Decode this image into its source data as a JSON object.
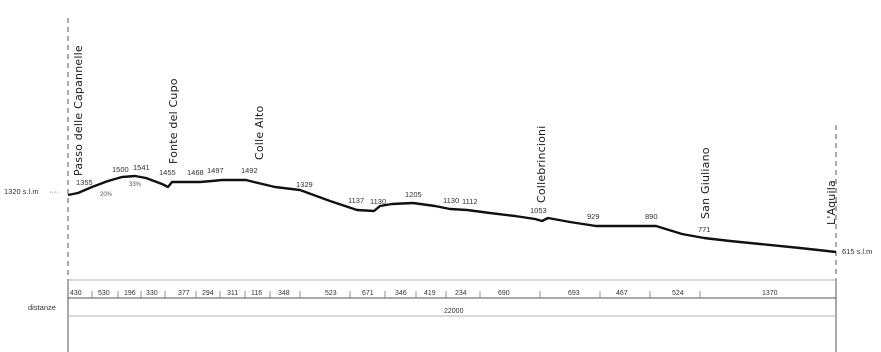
{
  "places": [
    {
      "name": "Passo delle Capannelle"
    },
    {
      "name": "Fonte del Cupo"
    },
    {
      "name": "Colle Alto"
    },
    {
      "name": "Collebrincioni"
    },
    {
      "name": "San Giuliano"
    },
    {
      "name": "L'Aquila"
    }
  ],
  "start_altitude": "1320 s.l.m",
  "end_altitude": "615 s.l.m",
  "altitudes": [
    "1355",
    "1500",
    "1541",
    "1455",
    "1468",
    "1497",
    "1492",
    "1329",
    "1137",
    "1130",
    "1205",
    "1130",
    "1112",
    "1053",
    "929",
    "890",
    "771"
  ],
  "slope_notes": [
    "20%",
    "33%"
  ],
  "distances_label": "distanze",
  "segments": [
    "430",
    "530",
    "196",
    "330",
    "377",
    "294",
    "311",
    "116",
    "348",
    "523",
    "671",
    "346",
    "419",
    "234",
    "690",
    "693",
    "467",
    "524",
    "1370"
  ],
  "total_distance": "22000"
}
